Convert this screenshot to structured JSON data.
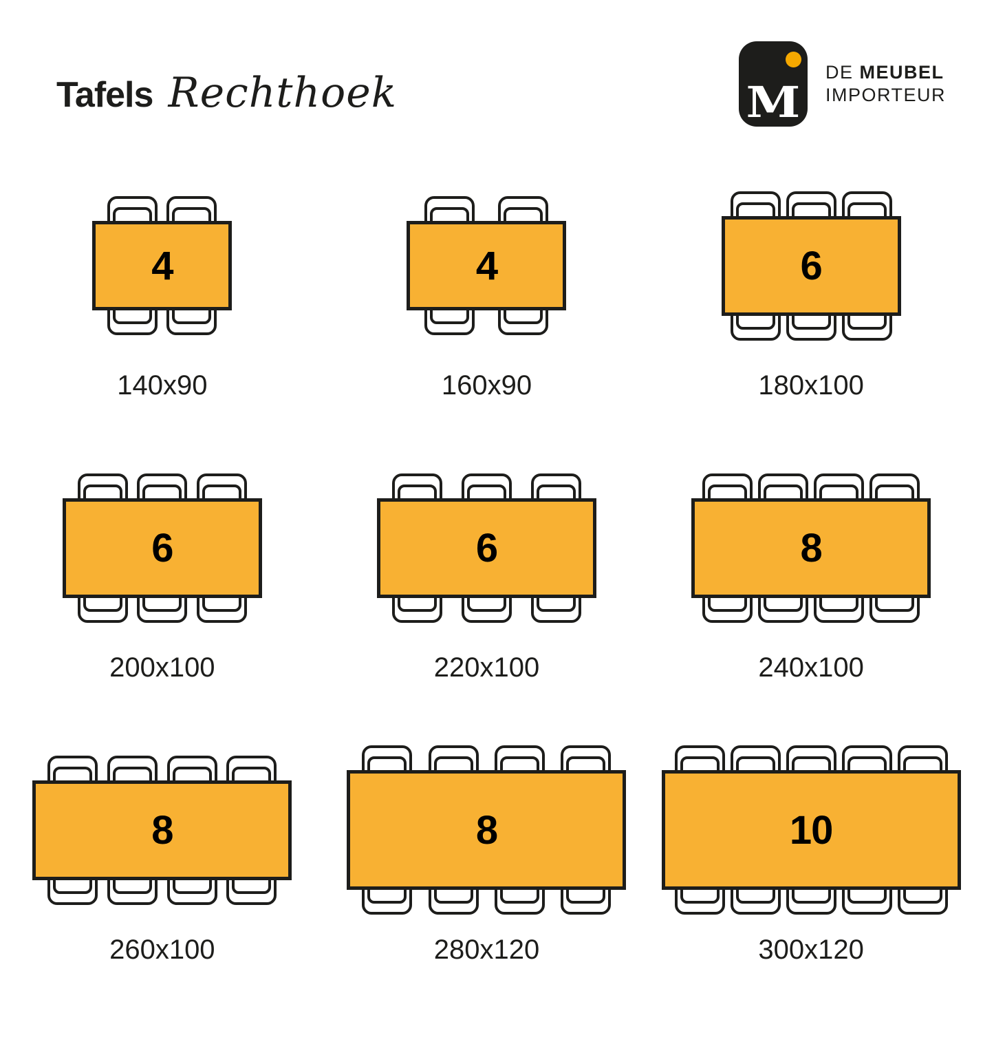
{
  "header": {
    "title_main": "Tafels",
    "title_script": "Rechthoek",
    "logo": {
      "monogram": "M",
      "line1_prefix": "DE ",
      "line1_bold": "MEUBEL",
      "line2": "IMPORTEUR"
    }
  },
  "colors": {
    "table_fill": "#F8B133",
    "outline": "#1D1D1B",
    "logo_bg": "#1D1D1B",
    "logo_dot": "#F5A800",
    "background": "#FFFFFF",
    "seat_number": "#000000"
  },
  "tables": [
    {
      "seats": "4",
      "size_label": "140x90",
      "width_cm": 140,
      "depth_cm": 90,
      "chairs_per_side": 2
    },
    {
      "seats": "4",
      "size_label": "160x90",
      "width_cm": 160,
      "depth_cm": 90,
      "chairs_per_side": 2
    },
    {
      "seats": "6",
      "size_label": "180x100",
      "width_cm": 180,
      "depth_cm": 100,
      "chairs_per_side": 3
    },
    {
      "seats": "6",
      "size_label": "200x100",
      "width_cm": 200,
      "depth_cm": 100,
      "chairs_per_side": 3
    },
    {
      "seats": "6",
      "size_label": "220x100",
      "width_cm": 220,
      "depth_cm": 100,
      "chairs_per_side": 3
    },
    {
      "seats": "8",
      "size_label": "240x100",
      "width_cm": 240,
      "depth_cm": 100,
      "chairs_per_side": 4
    },
    {
      "seats": "8",
      "size_label": "260x100",
      "width_cm": 260,
      "depth_cm": 100,
      "chairs_per_side": 4
    },
    {
      "seats": "8",
      "size_label": "280x120",
      "width_cm": 280,
      "depth_cm": 120,
      "chairs_per_side": 4
    },
    {
      "seats": "10",
      "size_label": "300x120",
      "width_cm": 300,
      "depth_cm": 120,
      "chairs_per_side": 5
    }
  ]
}
